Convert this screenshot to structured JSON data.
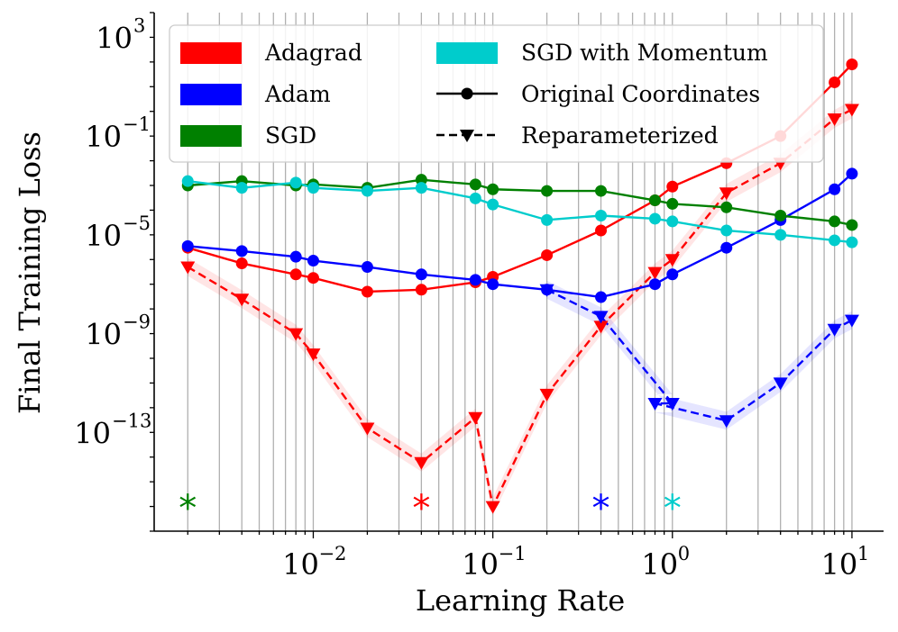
{
  "chart_data": {
    "type": "line",
    "xlabel": "Learning Rate",
    "ylabel": "Final Training Loss",
    "x_scale": "log",
    "y_scale": "log",
    "xlim": [
      0.0013,
      15
    ],
    "ylim": [
      1e-17,
      10000.0
    ],
    "x_ticks": [
      {
        "value": 0.01,
        "base": "10",
        "exp": "−2"
      },
      {
        "value": 0.1,
        "base": "10",
        "exp": "−1"
      },
      {
        "value": 1,
        "base": "10",
        "exp": "0"
      },
      {
        "value": 10,
        "base": "10",
        "exp": "1"
      }
    ],
    "y_ticks": [
      {
        "value": 1e-13,
        "base": "10",
        "exp": "−13"
      },
      {
        "value": 1e-09,
        "base": "10",
        "exp": "−9"
      },
      {
        "value": 1e-05,
        "base": "10",
        "exp": "−5"
      },
      {
        "value": 0.1,
        "base": "10",
        "exp": "−1"
      },
      {
        "value": 1000,
        "base": "10",
        "exp": "3"
      }
    ],
    "grid": "vertical minor and major lines on x",
    "legend_position": "top-left",
    "legend": {
      "optimizers": [
        {
          "name": "Adagrad",
          "color": "#ff0000"
        },
        {
          "name": "Adam",
          "color": "#0000ff"
        },
        {
          "name": "SGD",
          "color": "#008000"
        },
        {
          "name": "SGD with Momentum",
          "color": "#00cccc"
        }
      ],
      "styles": [
        {
          "name": "Original Coordinates",
          "style": "solid",
          "marker": "circle"
        },
        {
          "name": "Reparameterized",
          "style": "dashed",
          "marker": "triangle-down"
        }
      ]
    },
    "best_lr_markers": [
      {
        "optimizer": "SGD",
        "x": 0.002,
        "color": "#008000"
      },
      {
        "optimizer": "Adagrad",
        "x": 0.04,
        "color": "#ff0000"
      },
      {
        "optimizer": "Adam",
        "x": 0.4,
        "color": "#0000ff"
      },
      {
        "optimizer": "SGD with Momentum",
        "x": 1,
        "color": "#00cccc"
      }
    ],
    "series": [
      {
        "name": "Adagrad",
        "optimizer": "Adagrad",
        "style": "solid",
        "marker": "circle",
        "color": "#ff0000",
        "x": [
          0.002,
          0.004,
          0.008,
          0.01,
          0.02,
          0.04,
          0.08,
          0.1,
          0.2,
          0.4,
          0.8,
          1,
          2,
          4,
          8,
          10
        ],
        "y": [
          3e-06,
          7e-07,
          2.5e-07,
          1.8e-07,
          5e-08,
          6e-08,
          1.2e-07,
          2e-07,
          1.5e-06,
          1.5e-05,
          0.00025,
          0.0009,
          0.008,
          0.1,
          15,
          80
        ]
      },
      {
        "name": "Adagrad",
        "optimizer": "Adagrad",
        "style": "dashed",
        "marker": "triangle-down",
        "color": "#ff0000",
        "band": true,
        "x": [
          0.002,
          0.004,
          0.008,
          0.01,
          0.02,
          0.04,
          0.08,
          0.1,
          0.2,
          0.4,
          0.8,
          1,
          2,
          4,
          8,
          10
        ],
        "y": [
          5e-07,
          2.5e-08,
          1e-09,
          1.5e-10,
          1.5e-13,
          6e-15,
          4e-13,
          1e-16,
          3.5e-12,
          2e-09,
          3e-07,
          1e-06,
          0.0005,
          0.008,
          0.5,
          1.2
        ]
      },
      {
        "name": "Adam",
        "optimizer": "Adam",
        "style": "solid",
        "marker": "circle",
        "color": "#0000ff",
        "x": [
          0.002,
          0.004,
          0.008,
          0.01,
          0.02,
          0.04,
          0.08,
          0.1,
          0.2,
          0.4,
          0.8,
          1,
          2,
          4,
          8,
          10
        ],
        "y": [
          3.5e-06,
          2.2e-06,
          1.3e-06,
          9e-07,
          5e-07,
          2.5e-07,
          1.5e-07,
          1e-07,
          6e-08,
          3e-08,
          1e-07,
          2.5e-07,
          3e-06,
          4e-05,
          0.0007,
          0.003
        ]
      },
      {
        "name": "Adam",
        "optimizer": "Adam",
        "style": "dashed",
        "marker": "triangle-down",
        "color": "#0000ff",
        "band": true,
        "x": [
          0.2,
          0.4,
          1,
          0.8,
          2,
          4,
          8,
          10
        ],
        "y": [
          6e-08,
          5e-09,
          1.5e-12,
          1.5e-12,
          3e-13,
          1e-11,
          1.5e-09,
          3.5e-09
        ]
      },
      {
        "name": "SGD",
        "optimizer": "SGD",
        "style": "solid",
        "marker": "circle",
        "color": "#008000",
        "x": [
          0.002,
          0.004,
          0.008,
          0.01,
          0.02,
          0.04,
          0.08,
          0.1,
          0.2,
          0.4,
          0.8,
          1,
          2,
          4,
          8,
          10
        ],
        "y": [
          0.001,
          0.0015,
          0.001,
          0.0011,
          0.0008,
          0.0017,
          0.0011,
          0.0007,
          0.0006,
          0.0006,
          0.00025,
          0.00018,
          0.00013,
          6e-05,
          3.5e-05,
          2.5e-05
        ]
      },
      {
        "name": "SGD with Momentum",
        "optimizer": "SGD with Momentum",
        "style": "solid",
        "marker": "circle",
        "color": "#00cccc",
        "x": [
          0.002,
          0.004,
          0.008,
          0.01,
          0.02,
          0.04,
          0.08,
          0.1,
          0.2,
          0.4,
          0.8,
          1,
          2,
          4,
          8,
          10
        ],
        "y": [
          0.0015,
          0.0008,
          0.0013,
          0.0008,
          0.0006,
          0.0008,
          0.0003,
          0.00017,
          4e-05,
          6e-05,
          4.5e-05,
          3.5e-05,
          1.5e-05,
          1e-05,
          6e-06,
          5e-06
        ]
      }
    ]
  }
}
